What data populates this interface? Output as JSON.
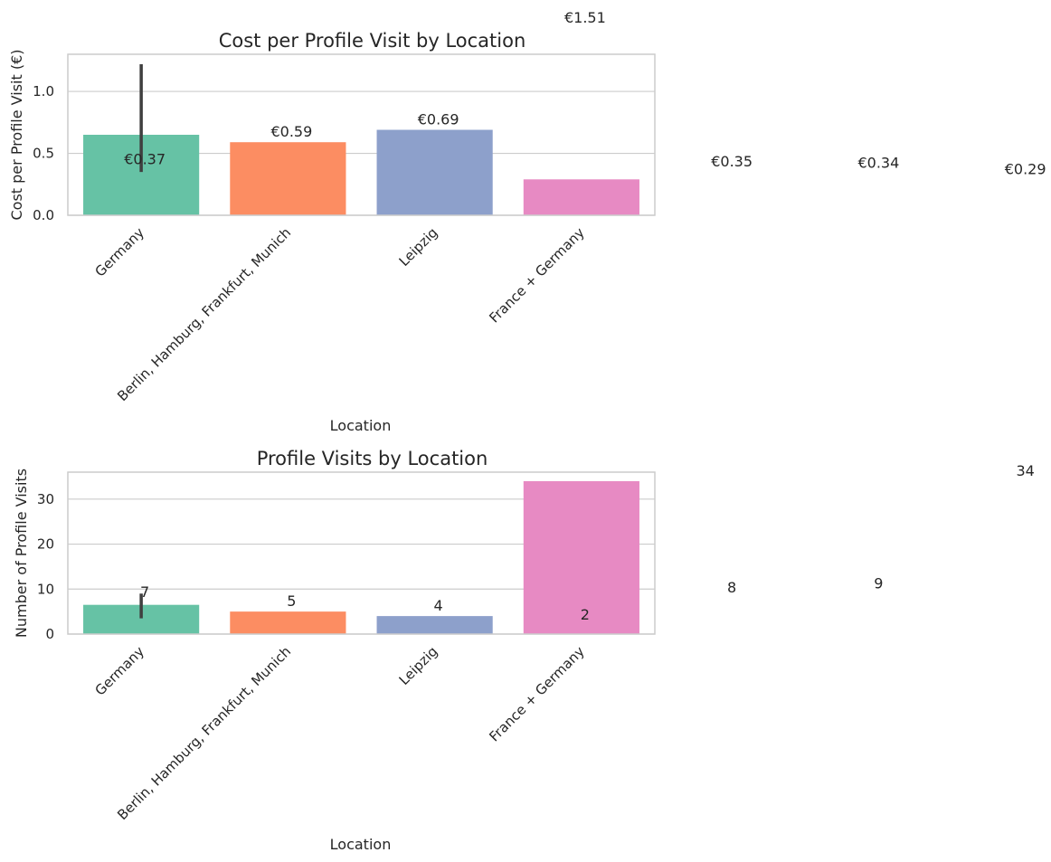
{
  "colors": [
    "#66c2a5",
    "#fc8d62",
    "#8da0cb",
    "#e78ac3"
  ],
  "chart_data": [
    {
      "type": "bar",
      "title": "Cost per Profile Visit by Location",
      "xlabel": "Location",
      "ylabel": "Cost per Profile Visit (€)",
      "categories": [
        "Germany",
        "Berlin, Hamburg, Frankfurt, Munich",
        "Leipzig",
        "France + Germany"
      ],
      "values": [
        0.65,
        0.59,
        0.69,
        0.29
      ],
      "error_bars": [
        [
          0.35,
          1.22
        ],
        null,
        null,
        null
      ],
      "ylim": [
        0,
        1.3
      ],
      "yticks": [
        0.0,
        0.5,
        1.0
      ],
      "ytick_labels": [
        "0.0",
        "0.5",
        "1.0"
      ],
      "grid": true,
      "annotations": [
        {
          "text": "€1.51",
          "x": 3,
          "y": 1.51
        },
        {
          "text": "€0.37",
          "x": 0,
          "y": 0.37
        },
        {
          "text": "€0.59",
          "x": 1,
          "y": 0.59
        },
        {
          "text": "€0.69",
          "x": 2,
          "y": 0.69
        },
        {
          "text": "€0.35",
          "x": 4,
          "y": 0.35
        },
        {
          "text": "€0.34",
          "x": 5,
          "y": 0.34
        },
        {
          "text": "€0.29",
          "x": 6,
          "y": 0.29
        }
      ]
    },
    {
      "type": "bar",
      "title": "Profile Visits by Location",
      "xlabel": "Location",
      "ylabel": "Number of Profile Visits",
      "categories": [
        "Germany",
        "Berlin, Hamburg, Frankfurt, Munich",
        "Leipzig",
        "France + Germany"
      ],
      "values": [
        6.5,
        5,
        4,
        34
      ],
      "error_bars": [
        [
          3.5,
          9.0
        ],
        null,
        null,
        null
      ],
      "ylim": [
        0,
        36
      ],
      "yticks": [
        0,
        10,
        20,
        30
      ],
      "ytick_labels": [
        "0",
        "10",
        "20",
        "30"
      ],
      "grid": true,
      "annotations": [
        {
          "text": "7",
          "x": 0,
          "y": 7
        },
        {
          "text": "5",
          "x": 1,
          "y": 5
        },
        {
          "text": "4",
          "x": 2,
          "y": 4
        },
        {
          "text": "2",
          "x": 3,
          "y": 2
        },
        {
          "text": "8",
          "x": 4,
          "y": 8
        },
        {
          "text": "9",
          "x": 5,
          "y": 9
        },
        {
          "text": "34",
          "x": 6,
          "y": 34
        }
      ]
    }
  ]
}
